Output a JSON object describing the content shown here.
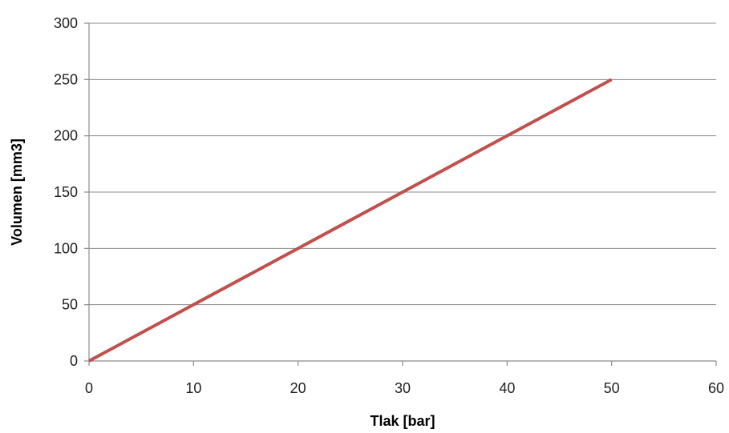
{
  "chart_data": {
    "type": "line",
    "title": "",
    "xlabel": "Tlak [bar]",
    "ylabel": "Volumen [mm3]",
    "xlim": [
      0,
      60
    ],
    "ylim": [
      0,
      300
    ],
    "xticks": [
      0,
      10,
      20,
      30,
      40,
      50,
      60
    ],
    "yticks": [
      0,
      50,
      100,
      150,
      200,
      250,
      300
    ],
    "grid": "horizontal",
    "legend": "none",
    "series": [
      {
        "color": "#c0504d",
        "x": [
          0,
          10,
          20,
          30,
          40,
          50
        ],
        "y": [
          0,
          50,
          100,
          150,
          200,
          250
        ]
      }
    ]
  }
}
